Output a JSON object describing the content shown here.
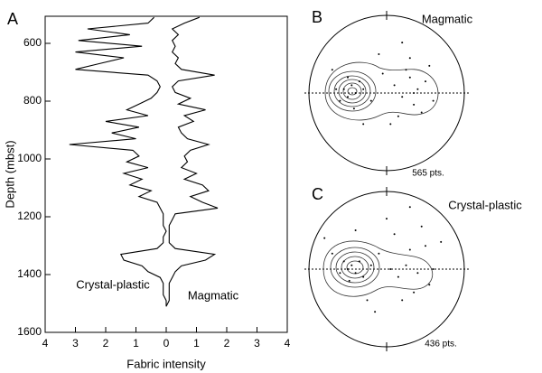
{
  "chart_data": [
    {
      "type": "line",
      "panel_label": "A",
      "x_label": "Fabric intensity",
      "y_label": "Depth (mbst)",
      "annotations": [
        "Crystal-plastic",
        "Magmatic"
      ],
      "xlim": [
        -4,
        4
      ],
      "xticks": [
        {
          "value": -4,
          "label": "4"
        },
        {
          "value": -3,
          "label": "3"
        },
        {
          "value": -2,
          "label": "2"
        },
        {
          "value": -1,
          "label": "1"
        },
        0,
        1,
        2,
        3,
        4
      ],
      "ylim": [
        1600,
        500
      ],
      "yticks": [
        600,
        800,
        1000,
        1200,
        1400,
        1600
      ],
      "series": [
        {
          "color": "#000000",
          "depth": [
            510,
            530,
            550,
            570,
            590,
            610,
            630,
            650,
            670,
            690,
            710,
            730,
            750,
            770,
            790,
            810,
            830,
            850,
            870,
            890,
            910,
            930,
            950,
            970,
            990,
            1010,
            1030,
            1050,
            1070,
            1090,
            1110,
            1130,
            1150,
            1170,
            1190,
            1210,
            1230,
            1250,
            1270,
            1290,
            1310,
            1330,
            1350,
            1370,
            1390,
            1410,
            1430,
            1450,
            1470,
            1490,
            1510
          ],
          "values": [
            -0.4,
            -0.6,
            -2.6,
            -1.2,
            -2.9,
            -0.8,
            -3.0,
            -1.4,
            -2.2,
            -3.0,
            -0.6,
            -0.3,
            -0.2,
            -0.3,
            -0.5,
            -0.9,
            -1.3,
            -0.6,
            -2.0,
            -0.9,
            -1.8,
            -1.0,
            -3.2,
            -1.1,
            -0.9,
            -1.3,
            -0.6,
            -1.4,
            -0.8,
            -1.2,
            -0.5,
            -0.9,
            -0.3,
            -0.2,
            -0.1,
            -0.1,
            -0.1,
            0,
            -0.1,
            -0.1,
            -0.3,
            -1.5,
            -1.4,
            -0.8,
            -0.6,
            -0.2,
            -0.1,
            -0.1,
            -0.1,
            0,
            0
          ]
        },
        {
          "color": "#000000",
          "depth": [
            510,
            530,
            550,
            570,
            590,
            610,
            630,
            650,
            670,
            690,
            710,
            730,
            750,
            770,
            790,
            810,
            830,
            850,
            870,
            890,
            910,
            930,
            950,
            970,
            990,
            1010,
            1030,
            1050,
            1070,
            1090,
            1110,
            1130,
            1150,
            1170,
            1190,
            1210,
            1230,
            1250,
            1270,
            1290,
            1310,
            1330,
            1350,
            1370,
            1390,
            1410,
            1430,
            1450,
            1470,
            1490,
            1510
          ],
          "values": [
            1.1,
            0.6,
            0.2,
            0.4,
            0.2,
            0.3,
            0.2,
            0.4,
            0.3,
            0.5,
            1.6,
            0.4,
            0.2,
            0.3,
            0.8,
            0.4,
            1.3,
            0.6,
            0.9,
            0.4,
            0.5,
            0.7,
            1.4,
            0.8,
            0.6,
            0.7,
            0.5,
            1.0,
            0.6,
            1.2,
            1.4,
            0.8,
            1.2,
            1.7,
            0.3,
            0.2,
            0.1,
            0.1,
            0.1,
            0.1,
            0.3,
            1.6,
            1.3,
            0.5,
            0.3,
            0.2,
            0.1,
            0.1,
            0.1,
            0.1,
            0
          ]
        }
      ]
    },
    {
      "type": "stereonet",
      "panel_label": "B",
      "title": "Magmatic",
      "count_label": "565 pts.",
      "color": "#000000",
      "x": [
        -0.55,
        -0.5,
        -0.45,
        -0.4,
        -0.6,
        -0.35,
        -0.5,
        -0.42,
        -0.3,
        -0.65,
        -0.2,
        0.1,
        0.2,
        0.3,
        0.35,
        0.4,
        0.25,
        0.45,
        0.15,
        0.5,
        0.3,
        -0.1,
        0.05,
        -0.7,
        0.6,
        0.2,
        -0.3,
        0.35,
        0.55,
        -0.05
      ],
      "y": [
        0.05,
        -0.05,
        0.1,
        0,
        -0.1,
        0.15,
        0.2,
        -0.2,
        0.05,
        0.05,
        -0.1,
        0.1,
        -0.05,
        0.2,
        -0.15,
        0.05,
        0.3,
        -0.25,
        -0.3,
        0.15,
        0.45,
        0.5,
        -0.4,
        0.3,
        -0.1,
        0.65,
        -0.4,
        0,
        0.35,
        0.25
      ]
    },
    {
      "type": "stereonet",
      "panel_label": "C",
      "title": "Crystal-plastic",
      "count_label": "436 pts.",
      "color": "#000000",
      "x": [
        -0.5,
        -0.45,
        -0.4,
        -0.55,
        -0.35,
        -0.6,
        -0.3,
        -0.48,
        -0.2,
        -0.1,
        0.05,
        0.15,
        0.25,
        0.3,
        0.4,
        0.5,
        0.2,
        0.1,
        -0.7,
        -0.8,
        0.6,
        0.7,
        0.35,
        -0.15,
        0.45,
        -0.4,
        0.0,
        0.55,
        -0.25,
        0.3
      ],
      "y": [
        0.0,
        0.05,
        -0.05,
        0.1,
        0.1,
        -0.05,
        -0.1,
        -0.15,
        0.05,
        0.2,
        0.0,
        -0.1,
        0.05,
        0.25,
        -0.05,
        0.3,
        -0.4,
        0.45,
        0.2,
        0.4,
        0.0,
        0.35,
        -0.3,
        -0.55,
        0.55,
        0.5,
        0.65,
        -0.2,
        -0.4,
        0.8
      ]
    }
  ]
}
